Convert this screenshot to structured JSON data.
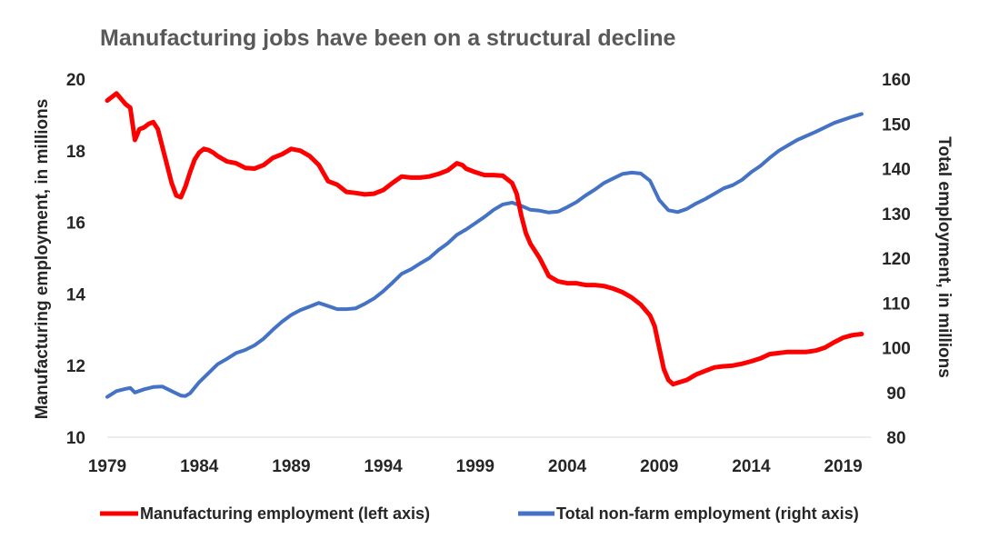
{
  "chart_data": {
    "type": "line",
    "title": "Manufacturing jobs have been on a structural decline",
    "ylabel_left": "Manufacturing employment, in millions",
    "ylabel_right": "Total employment, in millions",
    "x_ticks": [
      "1979",
      "1984",
      "1989",
      "1994",
      "1999",
      "2004",
      "2009",
      "2014",
      "2019"
    ],
    "y_left_ticks": [
      "10",
      "12",
      "14",
      "16",
      "18",
      "20"
    ],
    "y_right_ticks": [
      "80",
      "90",
      "100",
      "110",
      "120",
      "130",
      "140",
      "150",
      "160"
    ],
    "xlim": [
      1979,
      2020.5
    ],
    "ylim_left": [
      10,
      20
    ],
    "ylim_right": [
      80,
      160
    ],
    "colors": {
      "manufacturing": "#ff0000",
      "total": "#4472c4"
    },
    "series": [
      {
        "name": "Manufacturing employment (left axis)",
        "axis": "left",
        "x": [
          1979.0,
          1979.25,
          1979.5,
          1979.75,
          1980.0,
          1980.25,
          1980.5,
          1980.75,
          1981.0,
          1981.25,
          1981.5,
          1981.75,
          1982.0,
          1982.25,
          1982.5,
          1982.75,
          1983.0,
          1983.25,
          1983.5,
          1983.75,
          1984.0,
          1984.25,
          1984.5,
          1984.75,
          1985.0,
          1985.5,
          1986.0,
          1986.5,
          1987.0,
          1987.5,
          1988.0,
          1988.5,
          1989.0,
          1989.5,
          1990.0,
          1990.5,
          1991.0,
          1991.5,
          1992.0,
          1992.5,
          1993.0,
          1993.5,
          1994.0,
          1994.5,
          1995.0,
          1995.5,
          1996.0,
          1996.5,
          1997.0,
          1997.5,
          1998.0,
          1998.3,
          1998.5,
          1998.75,
          1999.0,
          1999.5,
          2000.0,
          2000.5,
          2001.0,
          2001.25,
          2001.5,
          2001.75,
          2002.0,
          2002.5,
          2003.0,
          2003.5,
          2004.0,
          2004.5,
          2005.0,
          2005.5,
          2006.0,
          2006.5,
          2007.0,
          2007.5,
          2008.0,
          2008.5,
          2008.75,
          2009.0,
          2009.25,
          2009.5,
          2009.75,
          2010.0,
          2010.5,
          2011.0,
          2011.5,
          2012.0,
          2012.5,
          2013.0,
          2013.5,
          2014.0,
          2014.5,
          2015.0,
          2015.5,
          2016.0,
          2016.5,
          2017.0,
          2017.5,
          2018.0,
          2018.5,
          2019.0,
          2019.5,
          2020.0
        ],
        "values": [
          19.4,
          19.5,
          19.6,
          19.45,
          19.3,
          19.2,
          18.3,
          18.6,
          18.65,
          18.75,
          18.8,
          18.6,
          18.1,
          17.6,
          17.1,
          16.75,
          16.7,
          17.0,
          17.4,
          17.75,
          17.95,
          18.05,
          18.02,
          17.95,
          17.85,
          17.7,
          17.65,
          17.52,
          17.5,
          17.6,
          17.8,
          17.9,
          18.05,
          18.0,
          17.85,
          17.6,
          17.15,
          17.05,
          16.85,
          16.82,
          16.78,
          16.8,
          16.9,
          17.1,
          17.28,
          17.25,
          17.25,
          17.28,
          17.35,
          17.45,
          17.65,
          17.6,
          17.5,
          17.45,
          17.4,
          17.32,
          17.32,
          17.3,
          17.1,
          16.8,
          16.2,
          15.7,
          15.4,
          15.0,
          14.5,
          14.35,
          14.3,
          14.3,
          14.25,
          14.25,
          14.22,
          14.15,
          14.05,
          13.9,
          13.7,
          13.4,
          13.1,
          12.5,
          11.9,
          11.6,
          11.48,
          11.52,
          11.6,
          11.75,
          11.85,
          11.95,
          11.98,
          12.0,
          12.05,
          12.12,
          12.2,
          12.32,
          12.35,
          12.38,
          12.38,
          12.38,
          12.42,
          12.5,
          12.65,
          12.78,
          12.85,
          12.88
        ]
      },
      {
        "name": "Total non-farm employment (right axis)",
        "axis": "right",
        "x": [
          1979.0,
          1979.5,
          1980.0,
          1980.25,
          1980.5,
          1981.0,
          1981.5,
          1982.0,
          1982.5,
          1983.0,
          1983.25,
          1983.5,
          1984.0,
          1984.5,
          1985.0,
          1985.5,
          1986.0,
          1986.5,
          1987.0,
          1987.5,
          1988.0,
          1988.5,
          1989.0,
          1989.5,
          1990.0,
          1990.5,
          1991.0,
          1991.5,
          1992.0,
          1992.5,
          1993.0,
          1993.5,
          1994.0,
          1994.5,
          1995.0,
          1995.5,
          1996.0,
          1996.5,
          1997.0,
          1997.5,
          1998.0,
          1998.5,
          1999.0,
          1999.5,
          2000.0,
          2000.5,
          2001.0,
          2001.5,
          2002.0,
          2002.5,
          2003.0,
          2003.5,
          2004.0,
          2004.5,
          2005.0,
          2005.5,
          2006.0,
          2006.5,
          2007.0,
          2007.5,
          2008.0,
          2008.5,
          2009.0,
          2009.5,
          2010.0,
          2010.5,
          2011.0,
          2011.5,
          2012.0,
          2012.5,
          2013.0,
          2013.5,
          2014.0,
          2014.5,
          2015.0,
          2015.5,
          2016.0,
          2016.5,
          2017.0,
          2017.5,
          2018.0,
          2018.5,
          2019.0,
          2019.5,
          2020.0
        ],
        "values": [
          89.0,
          90.3,
          90.8,
          91.0,
          90.0,
          90.7,
          91.2,
          91.3,
          90.3,
          89.3,
          89.2,
          89.8,
          92.3,
          94.3,
          96.3,
          97.5,
          98.8,
          99.5,
          100.5,
          102.0,
          104.0,
          105.8,
          107.3,
          108.4,
          109.2,
          110.0,
          109.3,
          108.6,
          108.6,
          108.8,
          109.8,
          111.0,
          112.6,
          114.5,
          116.5,
          117.5,
          118.8,
          120.0,
          121.8,
          123.3,
          125.2,
          126.4,
          127.8,
          129.2,
          130.8,
          132.0,
          132.4,
          131.7,
          130.8,
          130.6,
          130.2,
          130.4,
          131.4,
          132.5,
          134.0,
          135.3,
          136.8,
          137.8,
          138.8,
          139.1,
          138.9,
          137.3,
          133.0,
          130.7,
          130.3,
          131.0,
          132.2,
          133.2,
          134.4,
          135.6,
          136.3,
          137.5,
          139.2,
          140.6,
          142.4,
          144.0,
          145.2,
          146.4,
          147.3,
          148.2,
          149.2,
          150.2,
          150.9,
          151.6,
          152.2
        ]
      }
    ],
    "legend_position": "bottom",
    "grid": false
  }
}
